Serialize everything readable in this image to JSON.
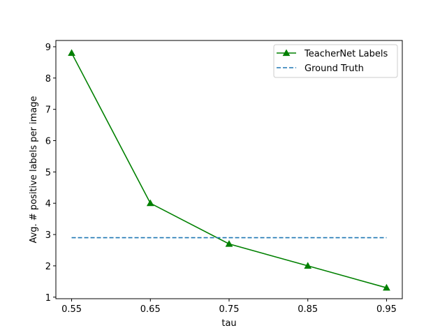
{
  "chart_data": {
    "type": "line",
    "xlabel": "tau",
    "ylabel": "Avg. # positive labels per image",
    "x": [
      0.55,
      0.65,
      0.75,
      0.85,
      0.95
    ],
    "x_tick_labels": [
      "0.55",
      "0.65",
      "0.75",
      "0.85",
      "0.95"
    ],
    "y_ticks": [
      1,
      2,
      3,
      4,
      5,
      6,
      7,
      8,
      9
    ],
    "xlim": [
      0.53,
      0.97
    ],
    "ylim": [
      0.95,
      9.2
    ],
    "grid": false,
    "legend_position": "upper right",
    "series": [
      {
        "name": "TeacherNet Labels",
        "values": [
          8.8,
          4.0,
          2.7,
          2.0,
          1.3
        ],
        "color": "#008000",
        "line_style": "solid",
        "marker": "triangle-up"
      },
      {
        "name": "Ground Truth",
        "values": [
          2.9,
          2.9,
          2.9,
          2.9,
          2.9
        ],
        "color": "#1f77b4",
        "line_style": "dashed",
        "marker": "none"
      }
    ]
  }
}
